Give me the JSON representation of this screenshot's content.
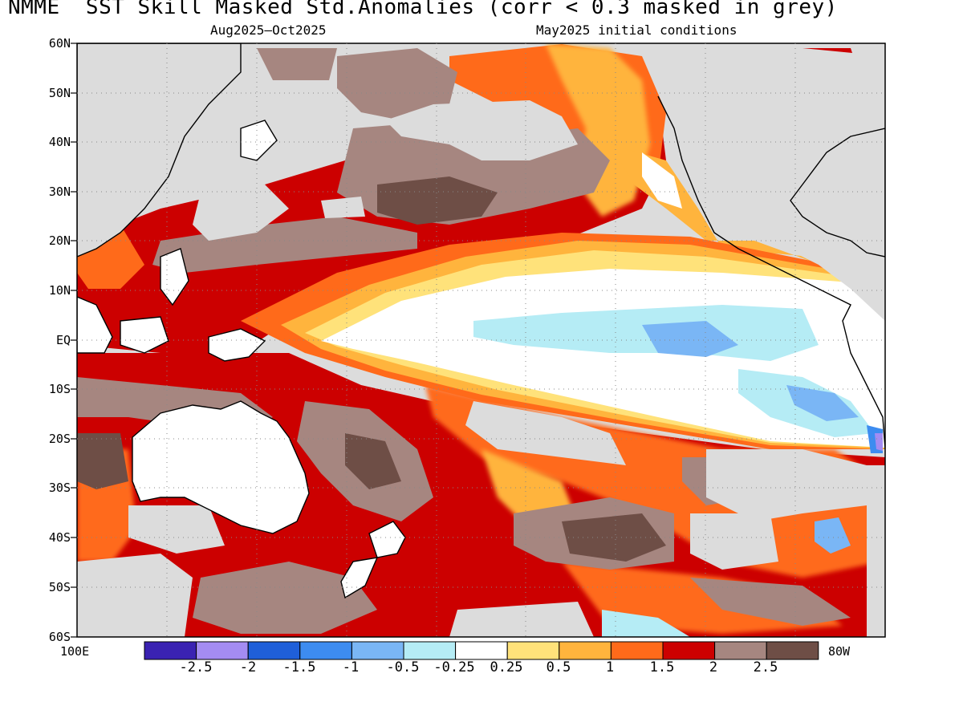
{
  "header": {
    "title": "NMME  SST Skill Masked Std.Anomalies (corr < 0.3 masked in grey)",
    "period": "Aug2025–Oct2025",
    "init": "May2025 initial conditions"
  },
  "axes": {
    "lat_labels": [
      "60N",
      "50N",
      "40N",
      "30N",
      "20N",
      "10N",
      "EQ",
      "10S",
      "20S",
      "30S",
      "40S",
      "50S",
      "60S"
    ],
    "lon_left": "100E",
    "lon_right": "80W"
  },
  "colorbar": {
    "colors": [
      "#3a22b2",
      "#a48cf2",
      "#1f5fd9",
      "#3d8cf0",
      "#7ab6f5",
      "#b5ecf5",
      "#ffffff",
      "#ffe27a",
      "#ffb43d",
      "#ff6a1a",
      "#cc0000",
      "#a68680",
      "#6e4e46"
    ],
    "tick_labels": [
      "-2.5",
      "-2",
      "-1.5",
      "-1",
      "-0.5",
      "-0.25",
      "0.25",
      "0.5",
      "1",
      "1.5",
      "2",
      "2.5"
    ]
  },
  "colors": {
    "land": "#ffffff",
    "mask": "#dcdcdc",
    "coast": "#000000"
  },
  "map_regions": {
    "equatorial_cold_tongue": "white / light blue anomalies in central-eastern equatorial Pacific",
    "warm_anomalies": "orange to red and brown anomalies across western Pacific, North Pacific and South Pacific",
    "masked": "grey areas where skill correlation < 0.3"
  }
}
